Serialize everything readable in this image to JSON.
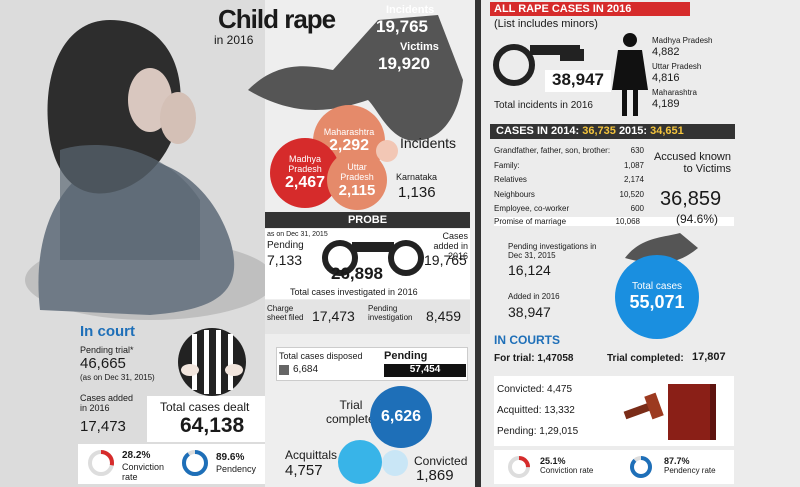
{
  "title": "Child rape",
  "subtitle": "in 2016",
  "hand": {
    "incidents_label": "Incidents",
    "incidents_value": "19,765",
    "victims_label": "Victims",
    "victims_value": "19,920"
  },
  "states": {
    "mp_name": "Madhya Pradesh",
    "mp_value": "2,467",
    "mh_name": "Maharashtra",
    "mh_value": "2,292",
    "up_name": "Uttar Pradesh",
    "up_value": "2,115",
    "ka_name": "Karnataka",
    "ka_value": "1,136",
    "incidents_label": "Incidents"
  },
  "probe": {
    "header": "PROBE",
    "pending_date": "as on Dec 31, 2015",
    "pending_label": "Pending",
    "pending_value": "7,133",
    "added_label": "Cases added in 2016",
    "added_value": "19,765",
    "total_value": "26,898",
    "total_label": "Total cases investigated in 2016",
    "charge_label": "Charge sheet filed",
    "charge_value": "17,473",
    "pendinv_label": "Pending investigation",
    "pendinv_value": "8,459"
  },
  "in_court": {
    "header": "In court",
    "pending_trial_label": "Pending trial*",
    "pending_trial_value": "46,665",
    "pending_trial_date": "(as on Dec 31, 2015)",
    "added_label": "Cases added in 2016",
    "added_value": "17,473",
    "total_label": "Total cases dealt",
    "total_value": "64,138",
    "conviction_value": "28.2%",
    "conviction_label": "Conviction rate",
    "pendency_value": "89.6%",
    "pendency_label": "Pendency"
  },
  "disposal": {
    "disposed_label": "Total cases disposed",
    "disposed_value": "6,684",
    "pending_label": "Pending",
    "pending_value": "57,454",
    "trial_label": "Trial completed",
    "trial_value": "6,626",
    "acquittals_label": "Acquittals",
    "acquittals_value": "4,757",
    "convicted_label": "Convicted",
    "convicted_value": "1,869"
  },
  "all_rape": {
    "header": "ALL RAPE CASES IN 2016",
    "note": "(List includes minors)",
    "total_value": "38,947",
    "total_label": "Total incidents in 2016",
    "s1_name": "Madhya Pradesh",
    "s1_value": "4,882",
    "s2_name": "Uttar Pradesh",
    "s2_value": "4,816",
    "s3_name": "Maharashtra",
    "s3_value": "4,189"
  },
  "cases_bar": {
    "label_2014": "CASES IN 2014:",
    "value_2014": "36,735",
    "label_2015": "2015:",
    "value_2015": "34,651"
  },
  "accused": {
    "rows": [
      {
        "label": "Grandfather, father, son, brother:",
        "value": "630"
      },
      {
        "label": "Family:",
        "value": "1,087"
      },
      {
        "label": "Relatives",
        "value": "2,174"
      },
      {
        "label": "Neighbours",
        "value": "10,520"
      },
      {
        "label": "Employee, co-worker",
        "value": "600"
      },
      {
        "label": "Promise of marriage",
        "value": "10,068"
      }
    ],
    "known_label": "Accused known to Victims",
    "known_value": "36,859",
    "known_pct": "(94.6%)"
  },
  "investigation": {
    "pending_label": "Pending investigations in Dec 31, 2015",
    "pending_value": "16,124",
    "added_label": "Added in 2016",
    "added_value": "38,947",
    "total_label": "Total cases",
    "total_value": "55,071"
  },
  "in_courts": {
    "header": "IN COURTS",
    "trial_label": "For trial: 1,47058",
    "completed_label": "Trial completed:",
    "completed_value": "17,807",
    "convicted": "Convicted: 4,475",
    "acquitted": "Acquitted: 13,332",
    "pending": "Pending: 1,29,015",
    "conviction_value": "25.1%",
    "conviction_label": "Conviction rate",
    "pendency_value": "87.7%",
    "pendency_label": "Pendency rate"
  },
  "colors": {
    "red": "#d62b2b",
    "salmon": "#e58a6a",
    "blue": "#1e6fb8",
    "cyan": "#38b4e8",
    "dark": "#333333"
  }
}
